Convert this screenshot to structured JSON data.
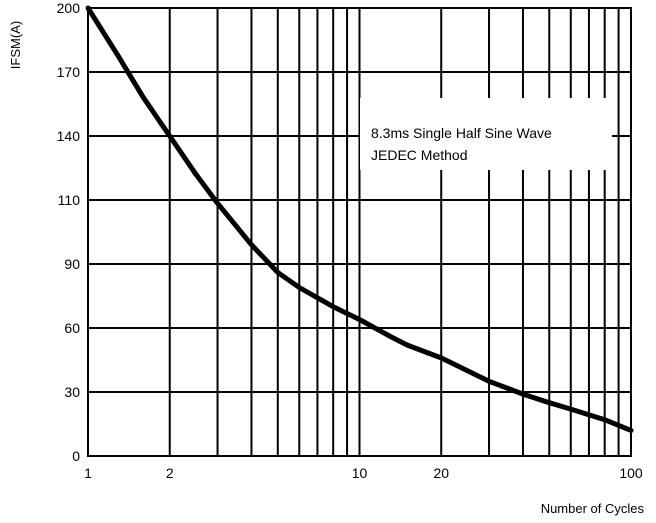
{
  "chart_data": {
    "type": "line",
    "title": "",
    "xlabel": "Number of Cycles",
    "ylabel": "IFSM(A)",
    "x_scale": "log",
    "xlim": [
      1,
      100
    ],
    "ylim": [
      0,
      200
    ],
    "x_ticks": [
      1,
      2,
      10,
      20,
      100
    ],
    "x_tick_labels": [
      "1",
      "2",
      "10",
      "20",
      "100"
    ],
    "y_ticks": [
      0,
      30,
      60,
      90,
      110,
      140,
      170,
      200
    ],
    "y_tick_labels": [
      "0",
      "30",
      "60",
      "90",
      "110",
      "140",
      "170",
      "200"
    ],
    "grid": true,
    "annotation": {
      "line1": "8.3ms Single Half Sine Wave",
      "line2": "JEDEC Method"
    },
    "series": [
      {
        "x": [
          1,
          1.3,
          1.6,
          2,
          2.5,
          3,
          4,
          5,
          6,
          8,
          10,
          13,
          15,
          20,
          25,
          30,
          40,
          50,
          60,
          80,
          100
        ],
        "y": [
          200,
          177,
          158,
          140,
          122,
          109,
          96,
          86,
          79,
          70,
          64,
          56,
          52,
          46,
          40,
          35,
          29,
          25,
          22,
          17,
          12
        ]
      }
    ],
    "colors": {
      "line": "#000000",
      "grid": "#000000",
      "background": "#ffffff"
    }
  }
}
